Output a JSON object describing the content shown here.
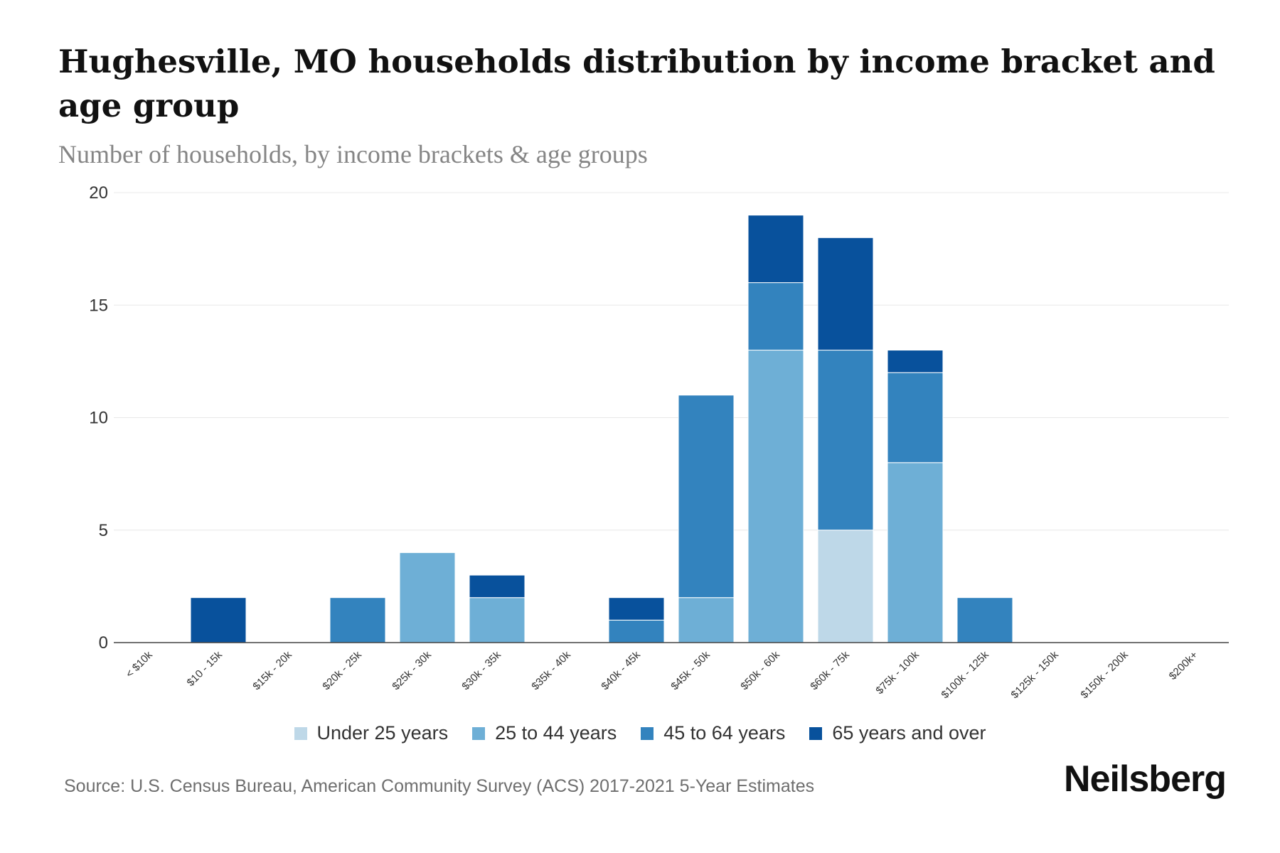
{
  "chart_data": {
    "type": "bar",
    "stacked": true,
    "title": "Hughesville, MO households distribution by income bracket and age group",
    "subtitle": "Number of households, by income brackets & age groups",
    "xlabel": "",
    "ylabel": "",
    "ylim": [
      0,
      20
    ],
    "yticks": [
      0,
      5,
      10,
      15,
      20
    ],
    "grid": true,
    "legend_position": "bottom",
    "categories": [
      "< $10k",
      "$10 - 15k",
      "$15k - 20k",
      "$20k - 25k",
      "$25k - 30k",
      "$30k - 35k",
      "$35k - 40k",
      "$40k - 45k",
      "$45k - 50k",
      "$50k - 60k",
      "$60k - 75k",
      "$75k - 100k",
      "$100k - 125k",
      "$125k - 150k",
      "$150k - 200k",
      "$200k+"
    ],
    "series": [
      {
        "name": "Under 25 years",
        "color": "#bed8e8",
        "values": [
          0,
          0,
          0,
          0,
          0,
          0,
          0,
          0,
          0,
          0,
          5,
          0,
          0,
          0,
          0,
          0
        ]
      },
      {
        "name": "25 to 44 years",
        "color": "#6eafd6",
        "values": [
          0,
          0,
          0,
          0,
          4,
          2,
          0,
          0,
          2,
          13,
          0,
          8,
          0,
          0,
          0,
          0
        ]
      },
      {
        "name": "45 to 64 years",
        "color": "#3383be",
        "values": [
          0,
          0,
          0,
          2,
          0,
          0,
          0,
          1,
          9,
          3,
          8,
          4,
          2,
          0,
          0,
          0
        ]
      },
      {
        "name": "65 years and over",
        "color": "#08519c",
        "values": [
          0,
          2,
          0,
          0,
          0,
          1,
          0,
          1,
          0,
          3,
          5,
          1,
          0,
          0,
          0,
          0
        ]
      }
    ]
  },
  "source": "Source: U.S. Census Bureau, American Community Survey (ACS) 2017-2021 5-Year Estimates",
  "brand": "Neilsberg"
}
